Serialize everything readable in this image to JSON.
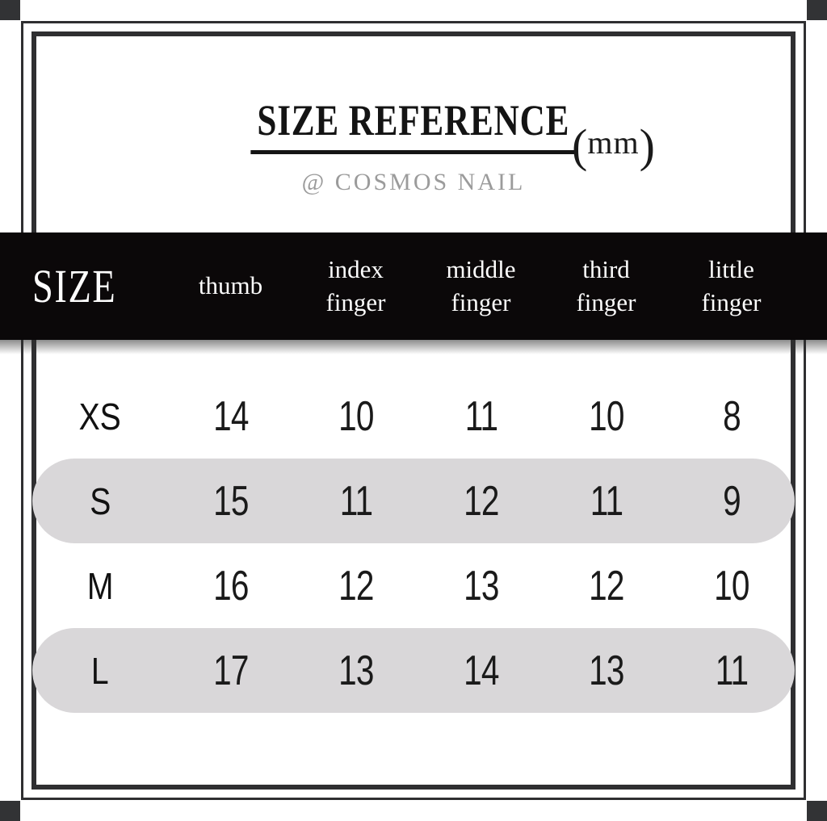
{
  "title": {
    "text": "SIZE REFERENCE",
    "unit_open": "(",
    "unit_value": "mm",
    "unit_close": ")",
    "subtitle": "@ COSMOS NAIL"
  },
  "table": {
    "header": {
      "size_label": "SIZE",
      "columns": [
        "thumb",
        "index\nfinger",
        "middle\nfinger",
        "third\nfinger",
        "little\nfinger"
      ]
    },
    "rows": [
      {
        "size": "XS",
        "values": [
          "14",
          "10",
          "11",
          "10",
          "8"
        ],
        "highlighted": false
      },
      {
        "size": "S",
        "values": [
          "15",
          "11",
          "12",
          "11",
          "9"
        ],
        "highlighted": true
      },
      {
        "size": "M",
        "values": [
          "16",
          "12",
          "13",
          "12",
          "10"
        ],
        "highlighted": false
      },
      {
        "size": "L",
        "values": [
          "17",
          "13",
          "14",
          "13",
          "11"
        ],
        "highlighted": true
      }
    ]
  },
  "colors": {
    "band_background": "#0b0809",
    "band_text": "#fdfdfd",
    "highlight_pill": "#d9d7d9",
    "frame": "#2f2f31",
    "subtitle_gray": "#9b9b9b",
    "text": "#161616"
  },
  "chart_data": {
    "type": "table",
    "title": "SIZE REFERENCE",
    "unit": "mm",
    "source": "@ COSMOS NAIL",
    "columns": [
      "SIZE",
      "thumb",
      "index finger",
      "middle finger",
      "third finger",
      "little finger"
    ],
    "rows": [
      [
        "XS",
        14,
        10,
        11,
        10,
        8
      ],
      [
        "S",
        15,
        11,
        12,
        11,
        9
      ],
      [
        "M",
        16,
        12,
        13,
        12,
        10
      ],
      [
        "L",
        17,
        13,
        14,
        13,
        11
      ]
    ],
    "highlighted_rows": [
      "S",
      "L"
    ]
  }
}
